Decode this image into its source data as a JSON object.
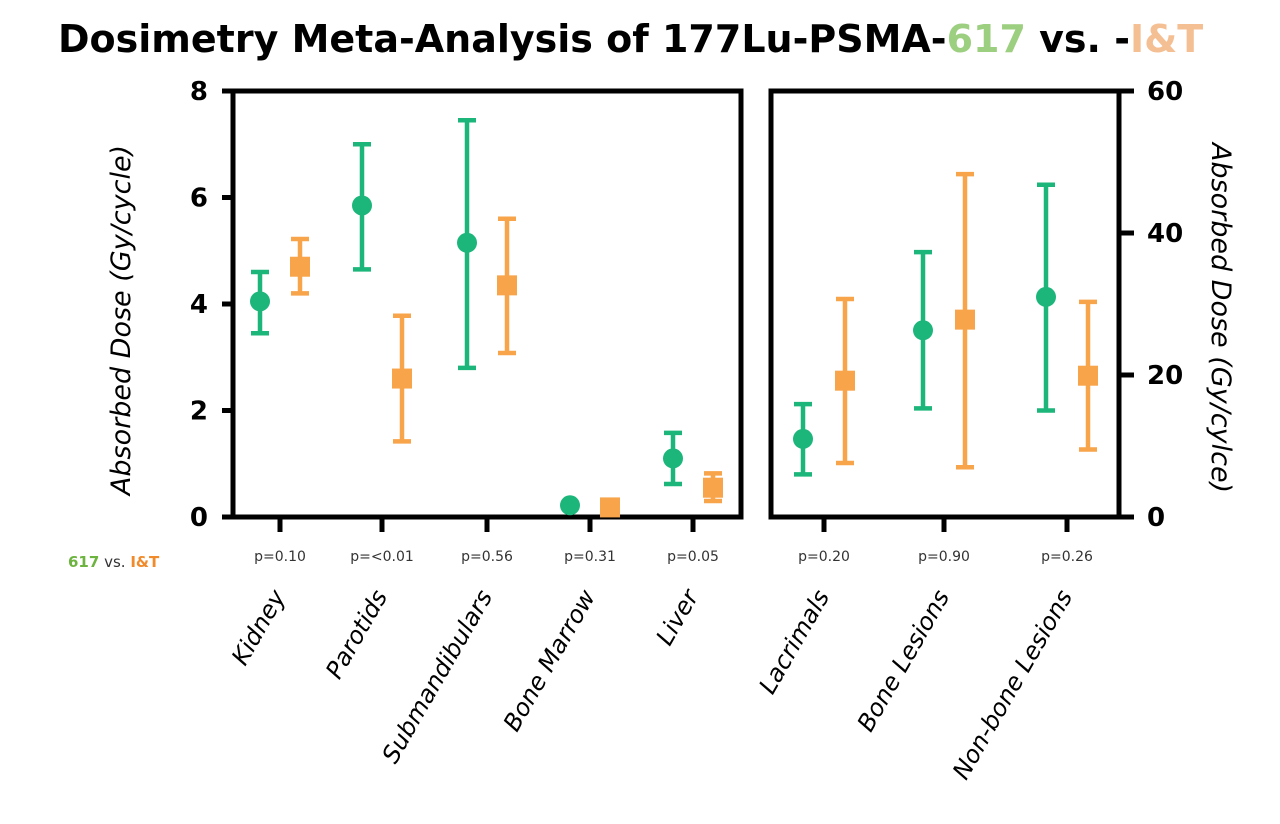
{
  "title": {
    "prefix": "Dosimetry Meta-Analysis of 177Lu-PSMA-",
    "part1": "617",
    "middle": " vs. -",
    "part2": "I&T"
  },
  "legend": {
    "a": "617",
    "vs": " vs. ",
    "b": "I&T"
  },
  "colors": {
    "s617": "#1cb67a",
    "sIT": "#f7a44a",
    "title617": "#9ccf7f",
    "titleIT": "#f5bf94",
    "legend617": "#6db33f",
    "legendIT": "#f08a2b"
  },
  "chart_data": [
    {
      "type": "scatter",
      "y_axis_side": "left",
      "ylabel": "Absorbed Dose (Gy/cycle)",
      "ylim": [
        0,
        8
      ],
      "yticks": [
        0,
        2,
        4,
        6,
        8
      ],
      "categories": [
        "Kidney",
        "Parotids",
        "Submandibulars",
        "Bone Marrow",
        "Liver"
      ],
      "pvalues": [
        "p=0.10",
        "p=<0.01",
        "p=0.56",
        "p=0.31",
        "p=0.05"
      ],
      "series": [
        {
          "name": "617",
          "marker": "circle",
          "values": [
            4.05,
            5.85,
            5.15,
            0.22,
            1.1
          ],
          "lower": [
            3.45,
            4.65,
            2.8,
            0.22,
            0.62
          ],
          "upper": [
            4.6,
            7.0,
            7.45,
            0.22,
            1.58
          ]
        },
        {
          "name": "I&T",
          "marker": "square",
          "values": [
            4.7,
            2.6,
            4.35,
            0.18,
            0.55
          ],
          "lower": [
            4.2,
            1.42,
            3.08,
            0.18,
            0.3
          ],
          "upper": [
            5.22,
            3.78,
            5.6,
            0.18,
            0.82
          ]
        }
      ]
    },
    {
      "type": "scatter",
      "y_axis_side": "right",
      "ylabel": "Absorbed Dose (Gy/cylce)",
      "ylim": [
        0,
        60
      ],
      "yticks": [
        0,
        20,
        40,
        60
      ],
      "categories": [
        "Lacrimals",
        "Bone Lesions",
        "Non-bone Lesions"
      ],
      "pvalues": [
        "p=0.20",
        "p=0.90",
        "p=0.26"
      ],
      "series": [
        {
          "name": "617",
          "marker": "circle",
          "values": [
            11.0,
            26.3,
            31.0
          ],
          "lower": [
            6.0,
            15.3,
            15.0
          ],
          "upper": [
            15.9,
            37.3,
            46.8
          ]
        },
        {
          "name": "I&T",
          "marker": "square",
          "values": [
            19.2,
            27.8,
            19.9
          ],
          "lower": [
            7.6,
            7.0,
            9.5
          ],
          "upper": [
            30.7,
            48.3,
            30.3
          ]
        }
      ]
    }
  ]
}
